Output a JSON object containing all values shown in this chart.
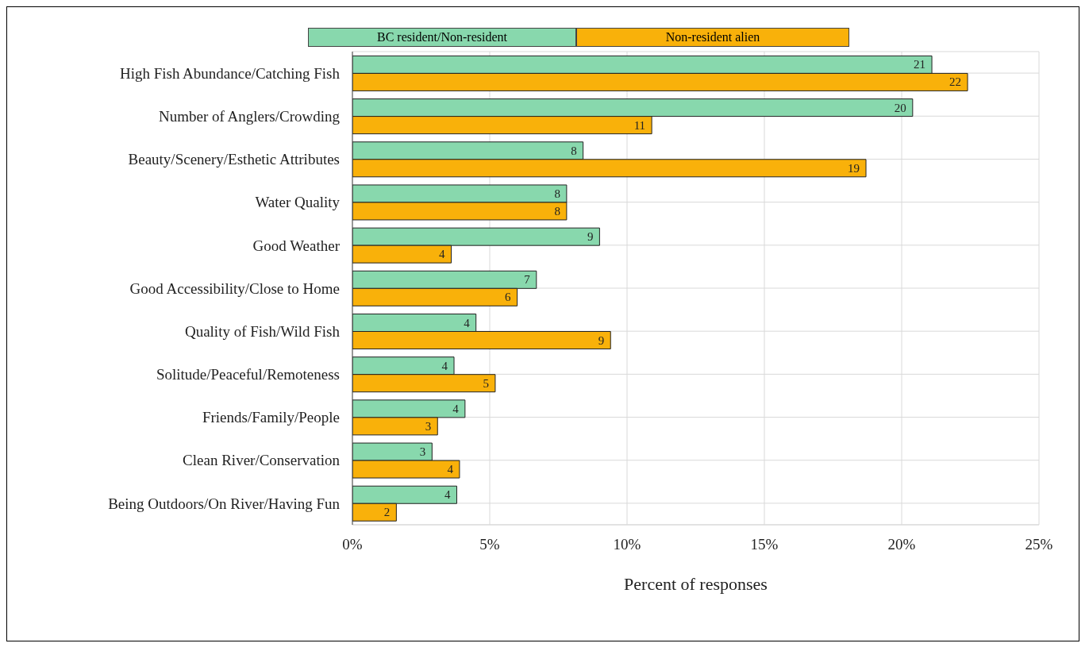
{
  "chart_data": {
    "type": "bar",
    "orientation": "horizontal",
    "xlabel": "Percent of responses",
    "categories": [
      "High Fish Abundance/Catching  Fish",
      "Number of Anglers/Crowding",
      "Beauty/Scenery/Esthetic Attributes",
      "Water Quality",
      "Good Weather",
      "Good Accessibility/Close to Home",
      "Quality of Fish/Wild Fish",
      "Solitude/Peaceful/Remoteness",
      "Friends/Family/People",
      "Clean River/Conservation",
      "Being Outdoors/On River/Having Fun"
    ],
    "series": [
      {
        "name": "BC resident/Non-resident",
        "color": "#88d8ad",
        "values": [
          21.1,
          20.4,
          8.4,
          7.8,
          9.0,
          6.7,
          4.5,
          3.7,
          4.1,
          2.9,
          3.8
        ],
        "value_labels": [
          "21",
          "20",
          "8",
          "8",
          "9",
          "7",
          "4",
          "4",
          "4",
          "3",
          "4"
        ]
      },
      {
        "name": "Non-resident alien",
        "color": "#f9b10a",
        "values": [
          22.4,
          10.9,
          18.7,
          7.8,
          3.6,
          6.0,
          9.4,
          5.2,
          3.1,
          3.9,
          1.6
        ],
        "value_labels": [
          "22",
          "11",
          "19",
          "8",
          "4",
          "6",
          "9",
          "5",
          "3",
          "4",
          "2"
        ]
      }
    ],
    "xlim": [
      0,
      25
    ],
    "xticks": [
      {
        "value": 0,
        "label": "0%"
      },
      {
        "value": 5,
        "label": "5%"
      },
      {
        "value": 10,
        "label": "10%"
      },
      {
        "value": 15,
        "label": "15%"
      },
      {
        "value": 20,
        "label": "20%"
      },
      {
        "value": 25,
        "label": "25%"
      }
    ],
    "grid": true,
    "legend": "top"
  }
}
